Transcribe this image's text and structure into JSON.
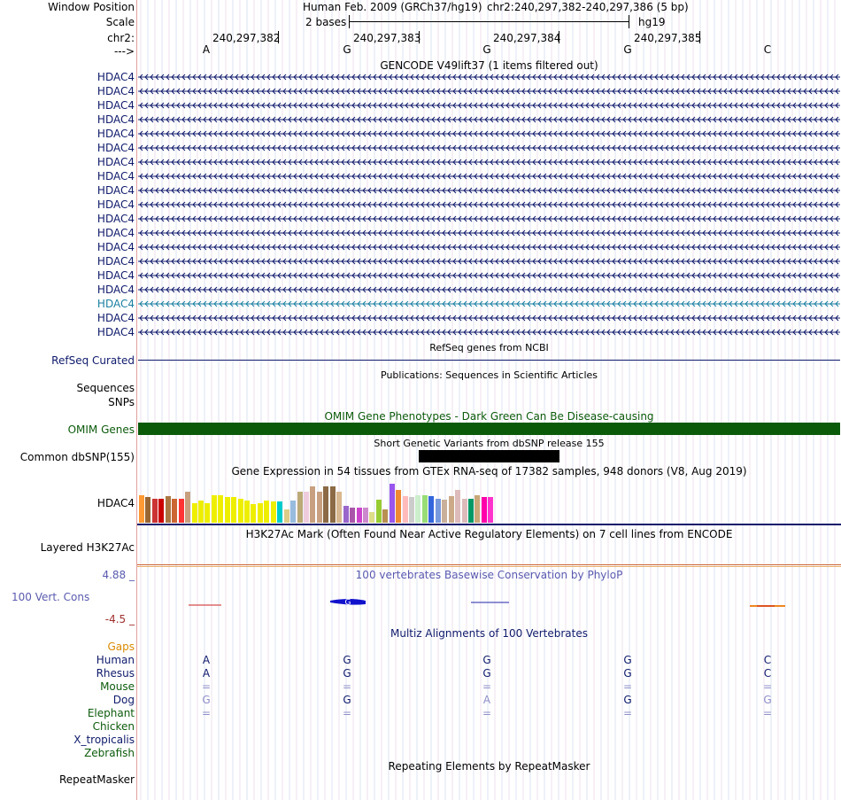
{
  "header": {
    "window_position_label": "Window Position",
    "assembly_text": "Human Feb. 2009 (GRCh37/hg19)",
    "position_text": "chr2:240,297,382-240,297,386 (5 bp)",
    "scale_label": "Scale",
    "scale_text": "2 bases",
    "scale_db": "hg19",
    "chrom_label": "chr2:",
    "strand_label": "--->",
    "ruler_positions": [
      "240,297,382",
      "240,297,383",
      "240,297,384",
      "240,297,385"
    ],
    "bases": [
      "A",
      "G",
      "G",
      "G",
      "C"
    ]
  },
  "gencode": {
    "title": "GENCODE V49lift37 (1 items filtered out)",
    "gene_name": "HDAC4",
    "gene_count": 19,
    "highlight_index": 16,
    "gene_color": "#0f1a6b",
    "highlight_color": "#1a7fa0"
  },
  "refseq": {
    "title": "RefSeq genes from NCBI",
    "label": "RefSeq Curated"
  },
  "publications": {
    "title": "Publications: Sequences in Scientific Articles",
    "label1": "Sequences",
    "label2": "SNPs"
  },
  "omim": {
    "title": "OMIM Gene Phenotypes - Dark Green Can Be Disease-causing",
    "label": "OMIM Genes",
    "color": "#0a5a0a"
  },
  "dbsnp": {
    "title": "Short Genetic Variants from dbSNP release 155",
    "label": "Common dbSNP(155)"
  },
  "gtex": {
    "title": "Gene Expression in 54 tissues from GTEx RNA-seq of 17382 samples, 948 donors (V8, Aug 2019)",
    "label": "HDAC4",
    "bars": [
      {
        "v": 0.62,
        "c": "#ff9933"
      },
      {
        "v": 0.58,
        "c": "#996633"
      },
      {
        "v": 0.55,
        "c": "#cc3333"
      },
      {
        "v": 0.55,
        "c": "#cc0000"
      },
      {
        "v": 0.6,
        "c": "#aa7744"
      },
      {
        "v": 0.55,
        "c": "#cc6633"
      },
      {
        "v": 0.55,
        "c": "#ff3333"
      },
      {
        "v": 0.7,
        "c": "#c8a080"
      },
      {
        "v": 0.45,
        "c": "#eeee00"
      },
      {
        "v": 0.5,
        "c": "#eeee00"
      },
      {
        "v": 0.45,
        "c": "#eeee00"
      },
      {
        "v": 0.62,
        "c": "#eeee00"
      },
      {
        "v": 0.62,
        "c": "#eeee00"
      },
      {
        "v": 0.58,
        "c": "#eeee00"
      },
      {
        "v": 0.58,
        "c": "#eeee00"
      },
      {
        "v": 0.55,
        "c": "#eeee00"
      },
      {
        "v": 0.5,
        "c": "#eeee00"
      },
      {
        "v": 0.42,
        "c": "#eeee00"
      },
      {
        "v": 0.45,
        "c": "#eeee00"
      },
      {
        "v": 0.5,
        "c": "#eeee00"
      },
      {
        "v": 0.48,
        "c": "#eeee00"
      },
      {
        "v": 0.48,
        "c": "#00cccc"
      },
      {
        "v": 0.3,
        "c": "#ddcc88"
      },
      {
        "v": 0.5,
        "c": "#99bbdd"
      },
      {
        "v": 0.7,
        "c": "#bbaa77"
      },
      {
        "v": 0.7,
        "c": "#eeccdd"
      },
      {
        "v": 0.82,
        "c": "#c8a080"
      },
      {
        "v": 0.7,
        "c": "#c8a080"
      },
      {
        "v": 0.82,
        "c": "#8b6a45"
      },
      {
        "v": 0.82,
        "c": "#8b6a45"
      },
      {
        "v": 0.7,
        "c": "#d8b890"
      },
      {
        "v": 0.38,
        "c": "#9966cc"
      },
      {
        "v": 0.35,
        "c": "#aa55aa"
      },
      {
        "v": 0.35,
        "c": "#cc44cc"
      },
      {
        "v": 0.35,
        "c": "#cc88cc"
      },
      {
        "v": 0.25,
        "c": "#dddd88"
      },
      {
        "v": 0.52,
        "c": "#99cc33"
      },
      {
        "v": 0.3,
        "c": "#b89050"
      },
      {
        "v": 0.88,
        "c": "#9955ee"
      },
      {
        "v": 0.75,
        "c": "#ee8833"
      },
      {
        "v": 0.6,
        "c": "#ffbbbb"
      },
      {
        "v": 0.58,
        "c": "#cccccc"
      },
      {
        "v": 0.62,
        "c": "#cceecc"
      },
      {
        "v": 0.62,
        "c": "#99dd77"
      },
      {
        "v": 0.6,
        "c": "#3366dd"
      },
      {
        "v": 0.55,
        "c": "#7799dd"
      },
      {
        "v": 0.52,
        "c": "#c8b09a"
      },
      {
        "v": 0.6,
        "c": "#ccaa88"
      },
      {
        "v": 0.75,
        "c": "#ddbbbb"
      },
      {
        "v": 0.55,
        "c": "#ddbbbb"
      },
      {
        "v": 0.55,
        "c": "#009966"
      },
      {
        "v": 0.62,
        "c": "#c8a878"
      },
      {
        "v": 0.58,
        "c": "#ff00aa"
      },
      {
        "v": 0.58,
        "c": "#ff33cc"
      }
    ]
  },
  "h3k27ac": {
    "title": "H3K27Ac Mark (Often Found Near Active Regulatory Elements) on 7 cell lines from ENCODE",
    "label": "Layered H3K27Ac"
  },
  "phylop": {
    "title": "100 vertebrates Basewise Conservation by PhyloP",
    "label": "100 Vert. Cons",
    "max_label": "4.88 _",
    "min_label": "-4.5 _"
  },
  "multiz": {
    "title": "Multiz Alignments of 100 Vertebrates",
    "gaps_label": "Gaps",
    "rows": [
      {
        "name": "Human",
        "cls": "navy",
        "bases": [
          "A",
          "G",
          "G",
          "G",
          "C"
        ],
        "light": [
          false,
          false,
          false,
          false,
          false
        ]
      },
      {
        "name": "Rhesus",
        "cls": "navy",
        "bases": [
          "A",
          "G",
          "G",
          "G",
          "C"
        ],
        "light": [
          false,
          false,
          false,
          false,
          false
        ]
      },
      {
        "name": "Mouse",
        "cls": "green",
        "bases": [
          "=",
          "=",
          "=",
          "=",
          "="
        ],
        "light": [
          true,
          true,
          true,
          true,
          true
        ]
      },
      {
        "name": "Dog",
        "cls": "navy",
        "bases": [
          "G",
          "G",
          "A",
          "G",
          "G"
        ],
        "light": [
          true,
          false,
          true,
          false,
          true
        ]
      },
      {
        "name": "Elephant",
        "cls": "green",
        "bases": [
          "=",
          "=",
          "=",
          "=",
          "="
        ],
        "light": [
          true,
          true,
          true,
          true,
          true
        ]
      },
      {
        "name": "Chicken",
        "cls": "green",
        "bases": [
          "",
          "",
          "",
          "",
          ""
        ],
        "light": [
          false,
          false,
          false,
          false,
          false
        ]
      },
      {
        "name": "X_tropicalis",
        "cls": "navy",
        "bases": [
          "",
          "",
          "",
          "",
          ""
        ],
        "light": [
          false,
          false,
          false,
          false,
          false
        ]
      },
      {
        "name": "Zebrafish",
        "cls": "green",
        "bases": [
          "",
          "",
          "",
          "",
          ""
        ],
        "light": [
          false,
          false,
          false,
          false,
          false
        ]
      }
    ]
  },
  "repeatmasker": {
    "title": "Repeating Elements by RepeatMasker",
    "label": "RepeatMasker"
  }
}
